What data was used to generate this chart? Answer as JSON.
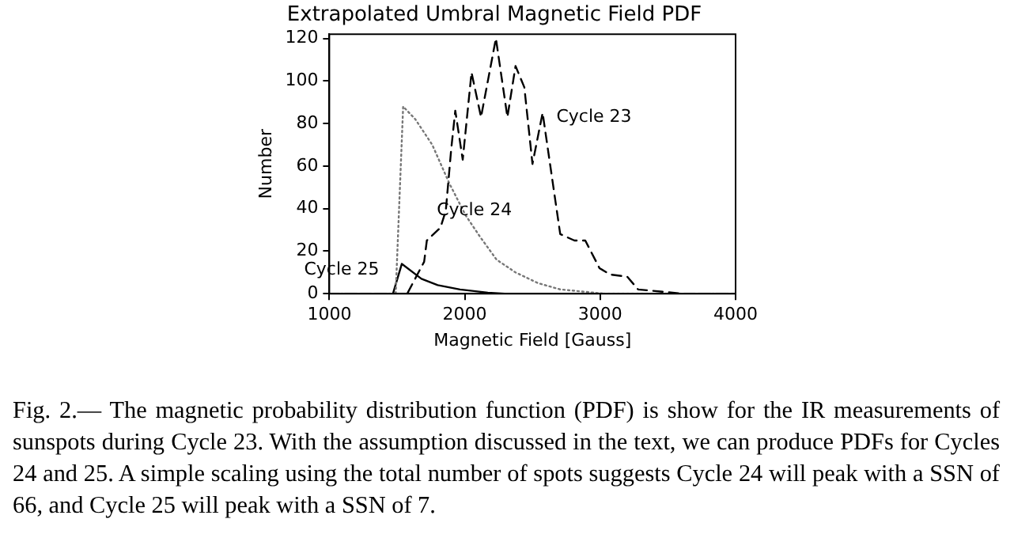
{
  "chart_data": {
    "type": "line",
    "title": "Extrapolated Umbral Magnetic Field PDF",
    "xlabel": "Magnetic Field [Gauss]",
    "ylabel": "Number",
    "xlim": [
      1000,
      4000
    ],
    "xticks": [
      1000,
      2000,
      3000,
      4000
    ],
    "ylim": [
      0,
      122
    ],
    "yticks": [
      0,
      20,
      40,
      60,
      80,
      100,
      120
    ],
    "grid": false,
    "legend": false,
    "marker": "none",
    "series": [
      {
        "name": "Cycle 23",
        "color": "#000000",
        "line_style": "dashed",
        "x": [
          1000,
          1470,
          1575,
          1700,
          1720,
          1820,
          1860,
          1900,
          1930,
          1985,
          2050,
          2120,
          2230,
          2315,
          2375,
          2440,
          2500,
          2575,
          2705,
          2810,
          2890,
          2995,
          3075,
          3200,
          3280,
          3445,
          3610,
          4000
        ],
        "values": [
          0,
          0,
          0,
          15,
          25,
          31,
          39,
          68,
          86,
          63,
          104,
          83,
          120,
          83,
          107,
          97,
          61,
          85,
          28,
          25,
          25,
          12,
          9,
          8,
          2,
          1,
          0,
          0
        ]
      },
      {
        "name": "Cycle 24",
        "color": "#777777",
        "line_style": "dotted",
        "x": [
          1000,
          1490,
          1545,
          1635,
          1760,
          1885,
          2005,
          2110,
          2235,
          2375,
          2540,
          2705,
          2870,
          3035,
          4000
        ],
        "values": [
          0,
          0,
          88,
          82,
          70,
          52,
          37,
          27,
          16,
          10,
          5,
          2,
          1,
          0,
          0
        ]
      },
      {
        "name": "Cycle 25",
        "color": "#000000",
        "line_style": "solid",
        "x": [
          1000,
          1470,
          1535,
          1680,
          1800,
          1965,
          2170,
          2295,
          4000
        ],
        "values": [
          0,
          0,
          14,
          7,
          4,
          2,
          0.5,
          0,
          0
        ]
      }
    ],
    "annotations": [
      "Fig. 2.— The magnetic probability distribution function (PDF) is show for the IR measurements of sunspots during Cycle 23. With the assumption discussed in the text, we can produce PDFs for Cycles 24 and 25. A simple scaling using the total number of spots suggests Cycle 24 will peak with a SSN of 66, and Cycle 25 will peak with a SSN of 7."
    ]
  }
}
